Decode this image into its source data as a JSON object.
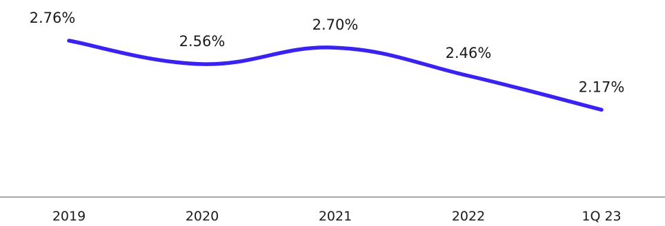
{
  "chart_data": {
    "type": "line",
    "categories": [
      "2019",
      "2020",
      "2021",
      "2022",
      "1Q 23"
    ],
    "series": [
      {
        "values": [
          2.76,
          2.56,
          2.7,
          2.46,
          2.17
        ],
        "labels": [
          "2.76%",
          "2.56%",
          "2.70%",
          "2.46%",
          "2.17%"
        ],
        "color": "#3a22f0"
      }
    ],
    "title": "",
    "xlabel": "",
    "ylabel": "",
    "grid": false,
    "legend": "none",
    "axis_color": "#8a8a8a"
  }
}
